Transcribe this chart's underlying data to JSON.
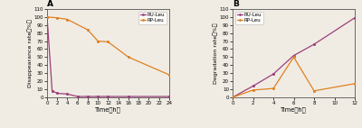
{
  "panel_A": {
    "title": "A",
    "xlabel": "Time（h）",
    "ylabel": "Disappearance rate（%）",
    "ylim": [
      0,
      110
    ],
    "yticks": [
      0,
      10,
      20,
      30,
      40,
      50,
      60,
      70,
      80,
      90,
      100,
      110
    ],
    "xlim": [
      0,
      24
    ],
    "xticks": [
      0,
      2,
      4,
      6,
      8,
      10,
      12,
      14,
      16,
      18,
      20,
      22,
      24
    ],
    "RU_Leu_x": [
      0,
      1,
      2,
      4,
      6,
      8,
      10,
      12,
      16,
      24
    ],
    "RU_Leu_y": [
      100,
      8,
      5,
      4,
      1,
      1,
      1,
      1,
      1,
      1
    ],
    "RP_Leu_x": [
      0,
      2,
      4,
      8,
      10,
      12,
      16,
      24
    ],
    "RP_Leu_y": [
      100,
      99,
      97,
      84,
      70,
      69,
      50,
      28
    ],
    "RU_color": "#9b3f7a",
    "RP_color": "#e08020",
    "legend_labels": [
      "RU-Leu",
      "RP-Leu"
    ]
  },
  "panel_B": {
    "title": "B",
    "xlabel": "Time（h）",
    "ylabel": "Degradation rate（%）",
    "ylim": [
      0,
      110
    ],
    "yticks": [
      0,
      10,
      20,
      30,
      40,
      50,
      60,
      70,
      80,
      90,
      100,
      110
    ],
    "xlim": [
      0,
      12
    ],
    "xticks": [
      0,
      2,
      4,
      6,
      8,
      10,
      12
    ],
    "RU_Leu_x": [
      0,
      2,
      4,
      6,
      8,
      12
    ],
    "RU_Leu_y": [
      0,
      14,
      29,
      52,
      66,
      99
    ],
    "RP_Leu_x": [
      0,
      2,
      4,
      6,
      8,
      12
    ],
    "RP_Leu_y": [
      0,
      9,
      11,
      50,
      8,
      17
    ],
    "RU_color": "#9b3f7a",
    "RP_color": "#e08020",
    "legend_labels": [
      "RU-Leu",
      "RP-Leu"
    ]
  },
  "fig_bg": "#f0ece4",
  "ax_bg": "#f0ece4"
}
